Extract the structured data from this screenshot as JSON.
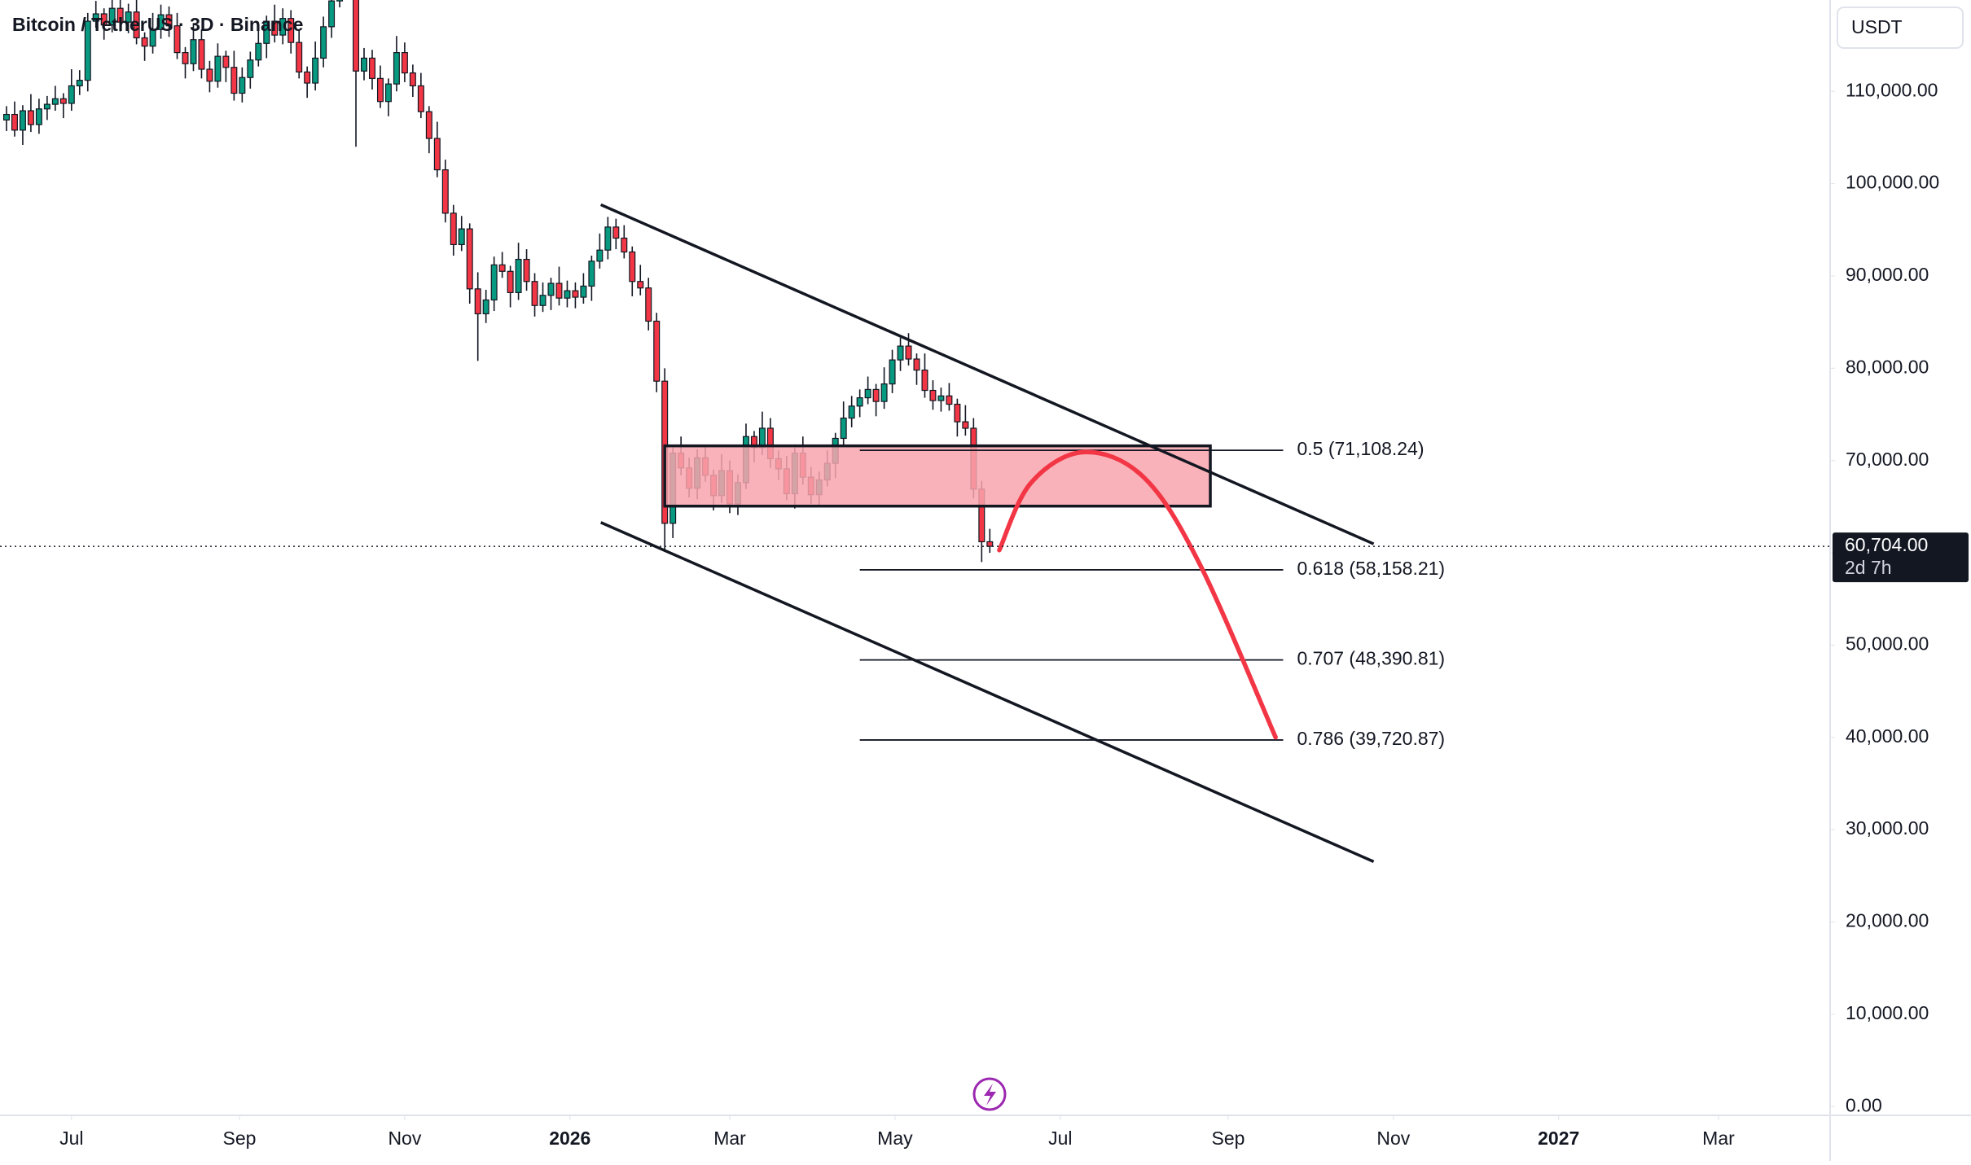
{
  "chart_data": {
    "type": "candlestick",
    "title": "Bitcoin / TetherUS · 3D · Binance",
    "currency": "USDT",
    "countdown": "2d 7h",
    "last_price": {
      "value": 60704,
      "label": "60,704.00"
    },
    "up_color": "#089981",
    "down_color": "#f23645",
    "x": [
      -24,
      -21,
      -18,
      -15,
      -12,
      -9,
      -6,
      -3,
      0,
      3,
      6,
      9,
      12,
      15,
      18,
      21,
      24,
      27,
      30,
      33,
      36,
      39,
      42,
      45,
      48,
      51,
      54,
      57,
      60,
      63,
      66,
      69,
      72,
      75,
      78,
      81,
      84,
      87,
      90,
      93,
      96,
      99,
      102,
      105,
      108,
      111,
      114,
      117,
      120,
      123,
      126,
      129,
      132,
      135,
      138,
      141,
      144,
      147,
      150,
      153,
      156,
      159,
      162,
      165,
      168,
      171,
      174,
      177,
      180,
      183,
      186,
      189,
      192,
      195,
      198,
      201,
      204,
      207,
      210,
      213,
      216,
      219,
      222,
      225,
      228,
      231,
      234,
      237,
      240,
      243,
      246,
      249,
      252,
      255,
      258,
      261,
      264,
      267,
      270,
      273,
      276,
      279,
      282,
      285,
      288,
      291,
      294,
      297,
      300,
      303,
      306,
      309,
      312,
      315,
      318,
      321,
      324,
      327,
      330,
      333,
      336,
      339
    ],
    "open": [
      106900,
      107500,
      105800,
      107900,
      106400,
      108100,
      108600,
      109200,
      108700,
      110600,
      111200,
      117600,
      118400,
      117200,
      119000,
      117500,
      118600,
      115800,
      114900,
      116700,
      118300,
      117100,
      114200,
      113000,
      115600,
      112400,
      111100,
      113800,
      112600,
      109800,
      111500,
      113400,
      115200,
      117600,
      116100,
      117900,
      115300,
      112100,
      110900,
      113600,
      117000,
      119800,
      123000,
      121500,
      112200,
      113600,
      111400,
      108900,
      110800,
      114200,
      112000,
      110600,
      107800,
      104900,
      101500,
      96800,
      93400,
      95100,
      88600,
      85900,
      87400,
      91200,
      90500,
      88200,
      91800,
      89400,
      86800,
      87900,
      89200,
      87600,
      88400,
      87700,
      88900,
      91600,
      92800,
      95300,
      94100,
      92600,
      89400,
      88700,
      85100,
      78600,
      63200,
      70800,
      69200,
      67000,
      70300,
      68400,
      66200,
      68900,
      65300,
      67600,
      72600,
      71400,
      73500,
      70200,
      69100,
      66400,
      70800,
      68200,
      66300,
      67900,
      69700,
      72400,
      74600,
      75900,
      76800,
      77700,
      76400,
      78300,
      80900,
      82400,
      81000,
      79800,
      77600,
      76500,
      77000,
      76100,
      74200,
      73500,
      66900,
      61200
    ],
    "high": [
      108400,
      108900,
      108500,
      109700,
      109200,
      109500,
      110600,
      109800,
      112400,
      112300,
      118500,
      119800,
      119000,
      120800,
      120100,
      119500,
      120000,
      116400,
      118500,
      119400,
      119200,
      118500,
      114800,
      117400,
      116700,
      113300,
      115200,
      114400,
      114400,
      112600,
      114300,
      116600,
      118200,
      119400,
      119000,
      118800,
      116700,
      112700,
      115400,
      118100,
      120700,
      126100,
      123600,
      123300,
      114700,
      114500,
      112800,
      111400,
      116000,
      115300,
      112900,
      112000,
      108400,
      106700,
      102600,
      97700,
      96500,
      95700,
      90400,
      88500,
      92100,
      92600,
      91100,
      93600,
      92900,
      90300,
      89300,
      89800,
      91000,
      89500,
      89300,
      90300,
      92200,
      94600,
      96400,
      96200,
      95500,
      93200,
      91200,
      89800,
      86000,
      80000,
      71400,
      72600,
      70300,
      71200,
      71700,
      69000,
      70700,
      70000,
      68500,
      74000,
      73200,
      75300,
      74600,
      71100,
      70500,
      71400,
      72600,
      69300,
      68800,
      71100,
      73000,
      76400,
      77000,
      77700,
      79100,
      78300,
      80100,
      82000,
      83300,
      83800,
      81600,
      81600,
      78700,
      77900,
      78400,
      76700,
      76000,
      74600,
      67800,
      62600
    ],
    "low": [
      105700,
      105100,
      104200,
      105600,
      105400,
      106900,
      107900,
      107100,
      107900,
      109600,
      110000,
      116900,
      115600,
      116400,
      116500,
      116300,
      115100,
      113300,
      114100,
      115700,
      115900,
      113500,
      111400,
      112200,
      111400,
      109900,
      110400,
      111000,
      109000,
      108800,
      110300,
      112700,
      113600,
      115300,
      115100,
      114100,
      111400,
      109300,
      110100,
      112600,
      115800,
      119100,
      119900,
      104000,
      111200,
      110200,
      108200,
      107300,
      110000,
      111000,
      109400,
      107100,
      103300,
      100700,
      95800,
      92200,
      92700,
      87000,
      80800,
      84900,
      86200,
      89800,
      86600,
      87400,
      88400,
      85600,
      86100,
      86300,
      86800,
      86600,
      86500,
      87000,
      87300,
      90800,
      91800,
      92900,
      91900,
      87800,
      87900,
      84100,
      77400,
      60100,
      61600,
      68400,
      66000,
      65800,
      67700,
      64600,
      65400,
      64300,
      64100,
      66900,
      69800,
      70600,
      69200,
      67900,
      65700,
      64800,
      67400,
      65300,
      65100,
      67200,
      68100,
      71600,
      73600,
      74700,
      76100,
      74800,
      75600,
      77300,
      79700,
      80300,
      78200,
      76800,
      75500,
      75300,
      75400,
      72600,
      72700,
      65900,
      59000,
      60000
    ],
    "close": [
      107500,
      105800,
      107900,
      106400,
      108100,
      108600,
      109200,
      108700,
      110600,
      111200,
      117600,
      118400,
      117200,
      119000,
      117500,
      118600,
      115800,
      114900,
      116700,
      118300,
      117100,
      114200,
      113000,
      115600,
      112400,
      111100,
      113800,
      112600,
      109800,
      111500,
      113400,
      115200,
      117600,
      116100,
      117900,
      115300,
      112100,
      110900,
      113600,
      117000,
      119800,
      123000,
      121500,
      112200,
      113600,
      111400,
      108900,
      110800,
      114200,
      112000,
      110600,
      107800,
      104900,
      101500,
      96800,
      93400,
      95100,
      88600,
      85900,
      87400,
      91200,
      90500,
      88200,
      91800,
      89400,
      86800,
      87900,
      89200,
      87600,
      88400,
      87700,
      88900,
      91600,
      92800,
      95300,
      94100,
      92600,
      89400,
      88700,
      85100,
      78600,
      63200,
      70800,
      69200,
      67000,
      70300,
      68400,
      66200,
      68900,
      65300,
      67600,
      72600,
      71400,
      73500,
      70200,
      69100,
      66400,
      70800,
      68200,
      66300,
      67900,
      69700,
      72400,
      74600,
      75900,
      76800,
      77700,
      76400,
      78300,
      80900,
      82400,
      81000,
      79800,
      77600,
      76500,
      77000,
      76100,
      74200,
      73500,
      66900,
      61200,
      60704
    ],
    "xlim": [
      -26.4,
      649.2
    ],
    "xticks": [
      {
        "value": 0,
        "label": "Jul"
      },
      {
        "value": 62,
        "label": "Sep"
      },
      {
        "value": 123,
        "label": "Nov"
      },
      {
        "value": 184,
        "label": "2026"
      },
      {
        "value": 243,
        "label": "Mar"
      },
      {
        "value": 304,
        "label": "May"
      },
      {
        "value": 365,
        "label": "Jul"
      },
      {
        "value": 427,
        "label": "Sep"
      },
      {
        "value": 488,
        "label": "Nov"
      },
      {
        "value": 549,
        "label": "2027"
      },
      {
        "value": 608,
        "label": "Mar"
      }
    ],
    "ylim": [
      -950,
      119900
    ],
    "yticks": [
      {
        "value": 0,
        "label": "0.00"
      },
      {
        "value": 10000,
        "label": "10,000.00"
      },
      {
        "value": 20000,
        "label": "20,000.00"
      },
      {
        "value": 30000,
        "label": "30,000.00"
      },
      {
        "value": 40000,
        "label": "40,000.00"
      },
      {
        "value": 50000,
        "label": "50,000.00"
      },
      {
        "value": 60000,
        "label": "60,000.00"
      },
      {
        "value": 70000,
        "label": "70,000.00"
      },
      {
        "value": 80000,
        "label": "80,000.00"
      },
      {
        "value": 90000,
        "label": "90,000.00"
      },
      {
        "value": 100000,
        "label": "100,000.00"
      },
      {
        "value": 110000,
        "label": "110,000.00"
      }
    ],
    "fib_x": [
      291,
      447.3
    ],
    "fib_levels": [
      {
        "value": 71108.24,
        "label": "0.5 (71,108.24)"
      },
      {
        "value": 58158.21,
        "label": "0.618 (58,158.21)"
      },
      {
        "value": 48390.81,
        "label": "0.707 (48,390.81)"
      },
      {
        "value": 39720.87,
        "label": "0.786 (39,720.87)"
      }
    ],
    "trendlines": [
      {
        "x": [
          195.4,
          480.7
        ],
        "y": [
          97720,
          60970
        ]
      },
      {
        "x": [
          195.4,
          480.7
        ],
        "y": [
          63290,
          26540
        ]
      }
    ],
    "zone": {
      "color": "#f8a5ad",
      "x": [
        219,
        420.4
      ],
      "y": [
        65060,
        71590
      ]
    },
    "projection": {
      "color": "#f23645",
      "x": [
        342.5,
        354,
        373.5,
        395.8,
        416.7,
        444.5
      ],
      "y": [
        60290,
        67510,
        70910,
        68190,
        58660,
        40010
      ]
    }
  }
}
